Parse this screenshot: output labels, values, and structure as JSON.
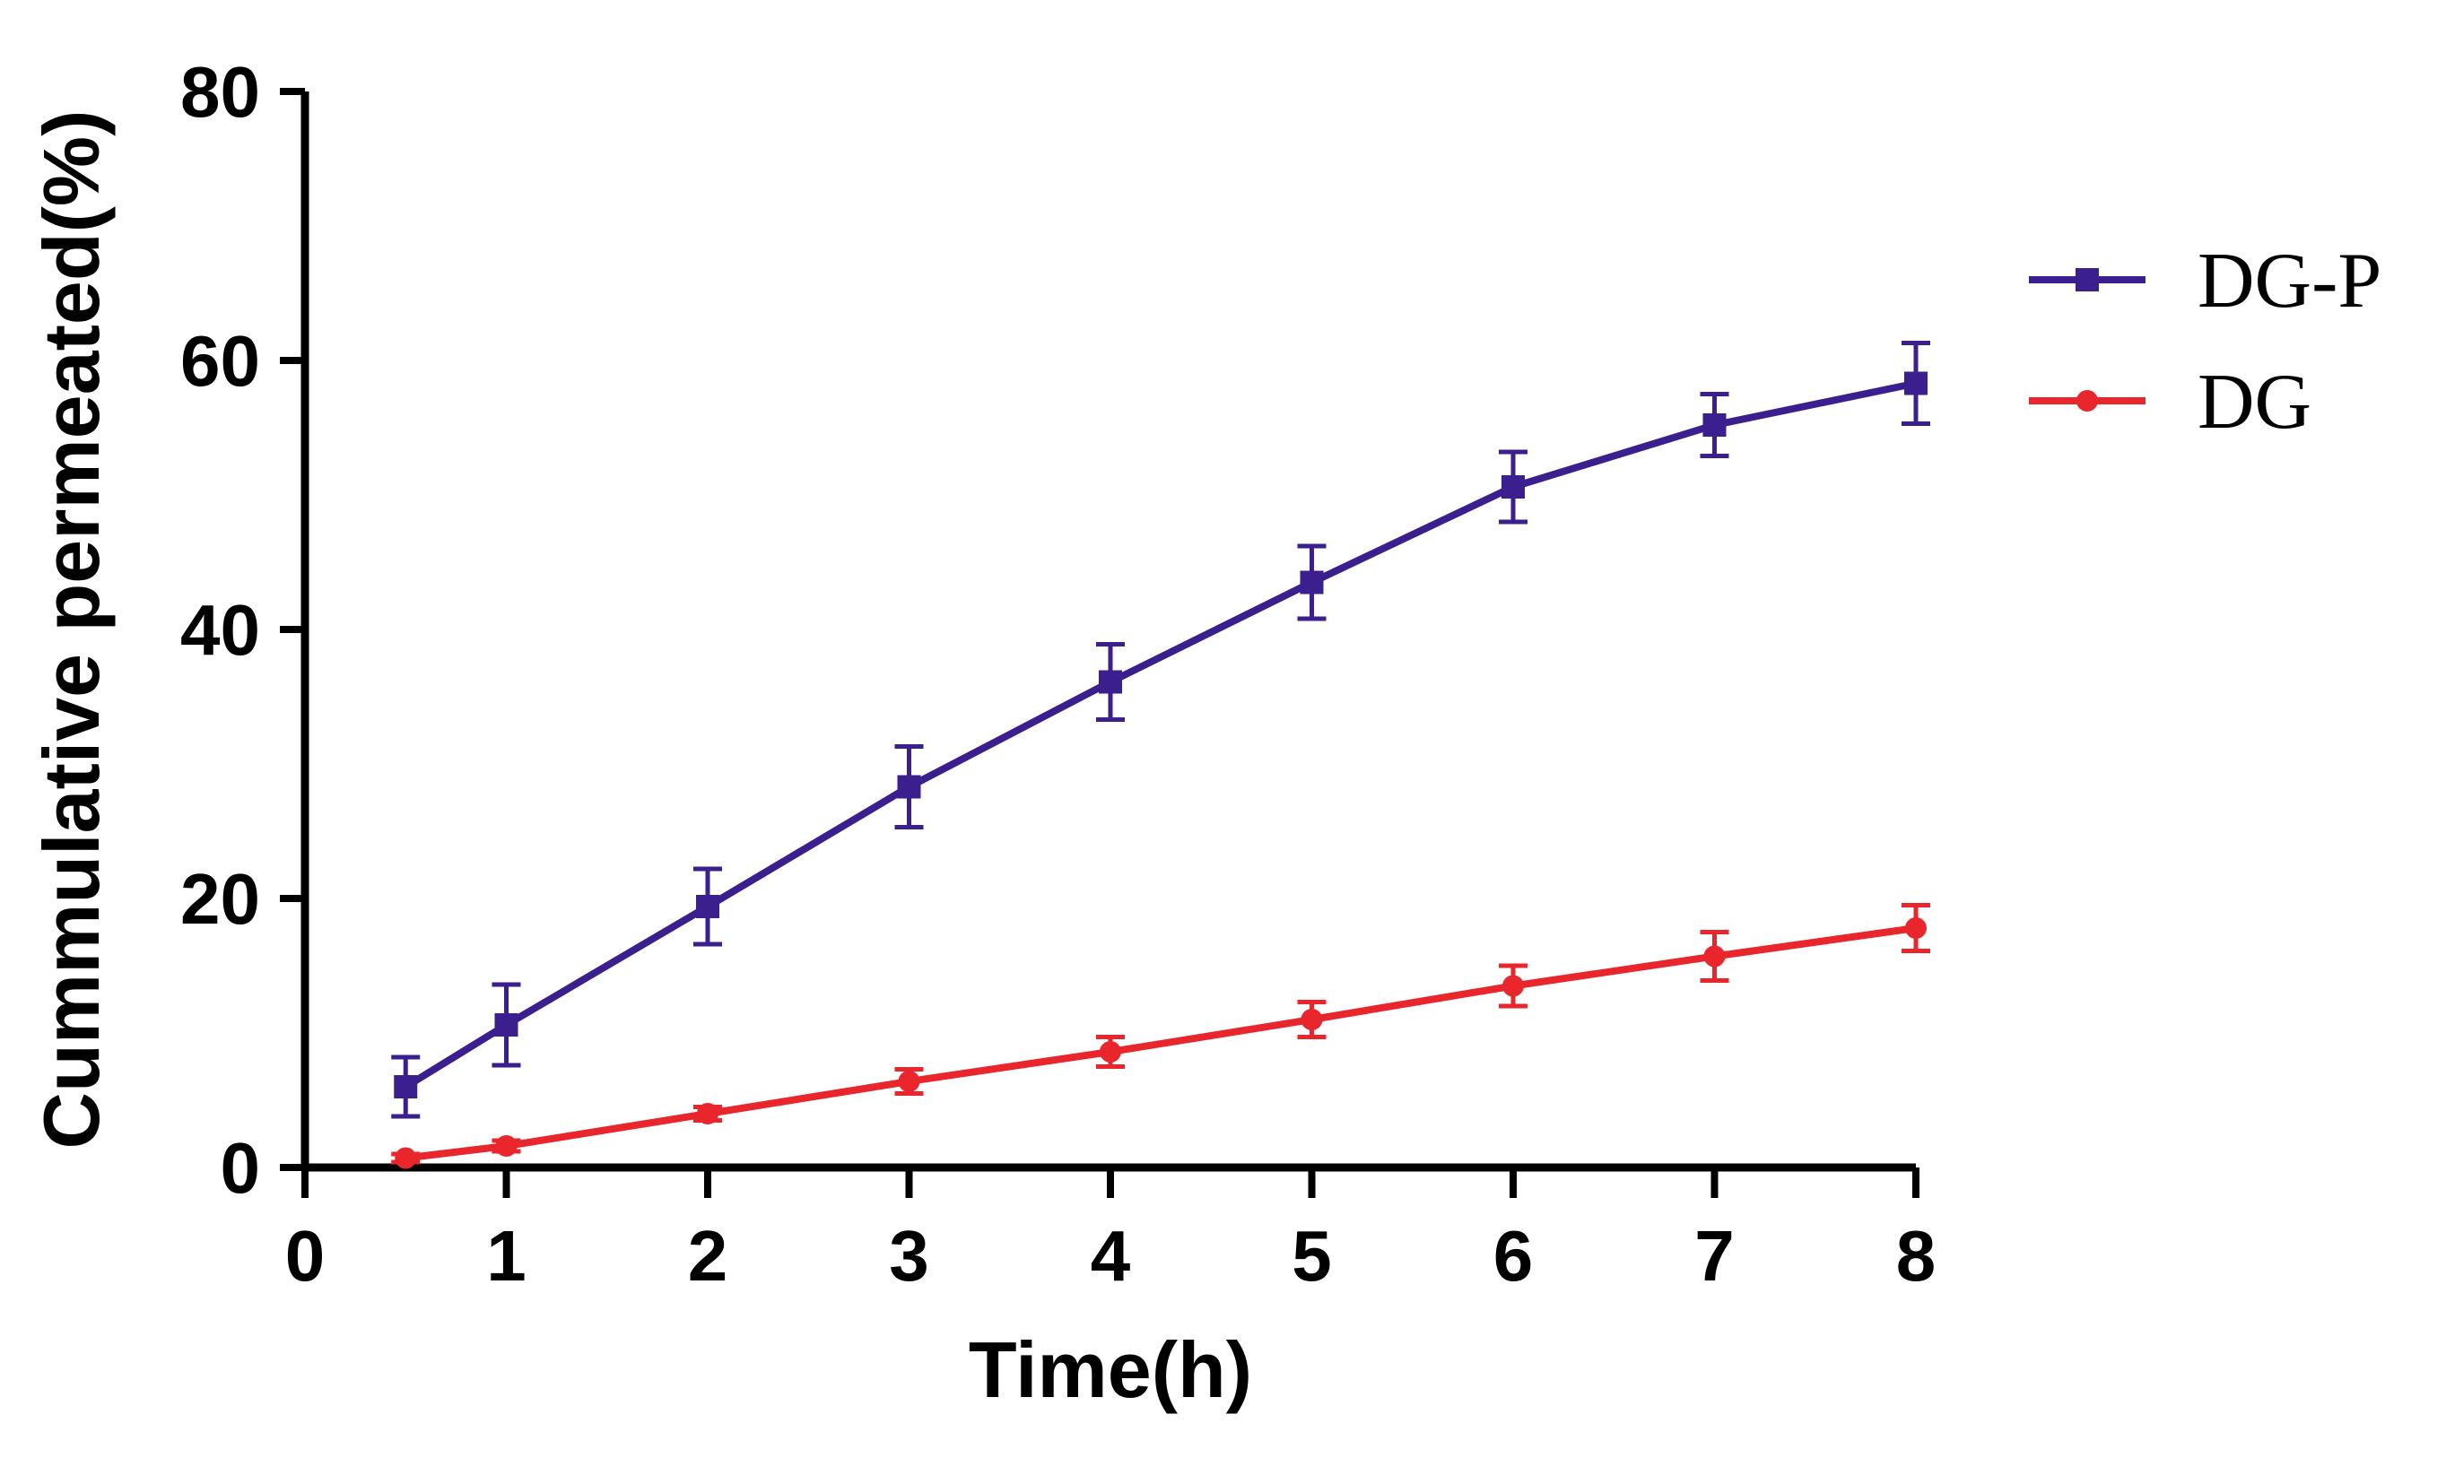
{
  "chart_data": {
    "type": "line",
    "title": "",
    "xlabel": "Time(h)",
    "ylabel": "Cummulative permeated(%)",
    "xlim": [
      0,
      8
    ],
    "ylim": [
      0,
      80
    ],
    "xticks": [
      0,
      1,
      2,
      3,
      4,
      5,
      6,
      7,
      8
    ],
    "yticks": [
      0,
      20,
      40,
      60,
      80
    ],
    "grid": false,
    "legend_position": "right",
    "series": [
      {
        "name": "DG-P",
        "color": "#3b1f8e",
        "marker": "square",
        "x": [
          0.5,
          1,
          2,
          3,
          4,
          5,
          6,
          7,
          8
        ],
        "values": [
          6.0,
          10.6,
          19.4,
          28.3,
          36.1,
          43.5,
          50.6,
          55.2,
          58.3
        ],
        "errors": [
          2.2,
          3.0,
          2.8,
          3.0,
          2.8,
          2.7,
          2.6,
          2.3,
          3.0
        ]
      },
      {
        "name": "DG",
        "color": "#e8262b",
        "marker": "circle",
        "x": [
          0.5,
          1,
          2,
          3,
          4,
          5,
          6,
          7,
          8
        ],
        "values": [
          0.7,
          1.6,
          4.0,
          6.4,
          8.6,
          11.0,
          13.5,
          15.7,
          17.8
        ],
        "errors": [
          0.3,
          0.4,
          0.5,
          0.9,
          1.1,
          1.3,
          1.5,
          1.8,
          1.7
        ]
      }
    ]
  }
}
